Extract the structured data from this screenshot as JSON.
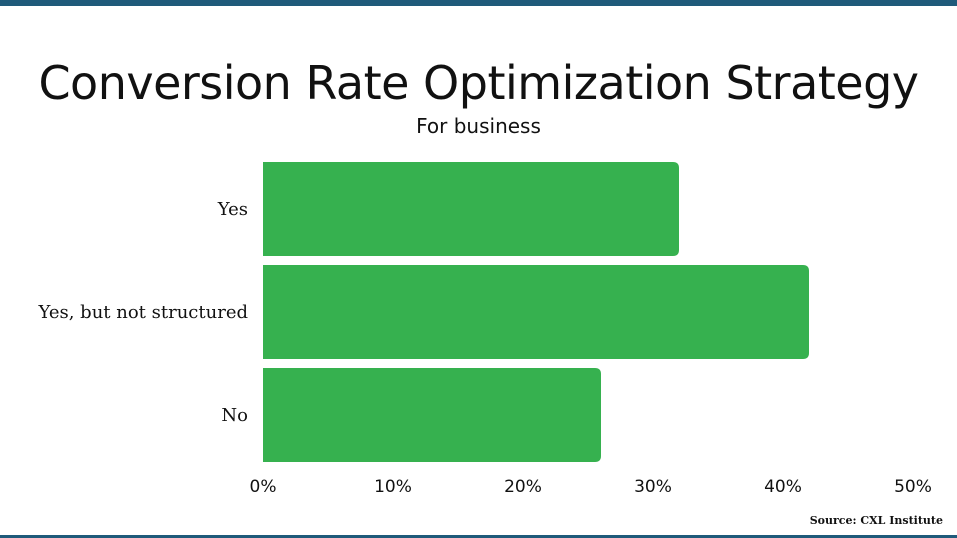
{
  "chart_data": {
    "type": "bar",
    "orientation": "horizontal",
    "title": "Conversion Rate Optimization Strategy",
    "subtitle": "For business",
    "categories": [
      "Yes",
      "Yes, but not structured",
      "No"
    ],
    "values": [
      32,
      42,
      26
    ],
    "xlim": [
      0,
      50
    ],
    "xticks": [
      "0%",
      "10%",
      "20%",
      "30%",
      "40%",
      "50%"
    ],
    "grid": false,
    "bar_color": "#36b14f"
  },
  "source": "Source:  CXL Institute",
  "colors": {
    "border": "#1f5a7a"
  }
}
